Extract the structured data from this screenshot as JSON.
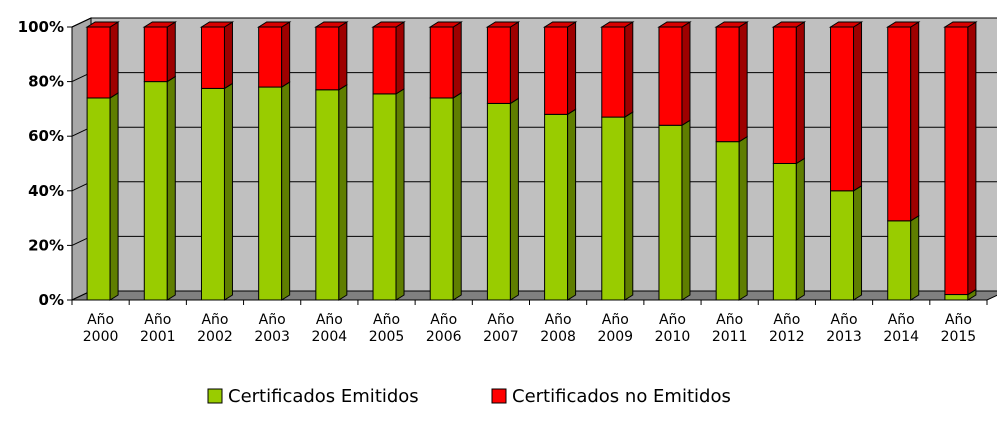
{
  "chart_data": {
    "type": "bar",
    "stacked": true,
    "percent": true,
    "three_d": true,
    "categories": [
      [
        "Año",
        "2000"
      ],
      [
        "Año",
        "2001"
      ],
      [
        "Año",
        "2002"
      ],
      [
        "Año",
        "2003"
      ],
      [
        "Año",
        "2004"
      ],
      [
        "Año",
        "2005"
      ],
      [
        "Año",
        "2006"
      ],
      [
        "Año",
        "2007"
      ],
      [
        "Año",
        "2008"
      ],
      [
        "Año",
        "2009"
      ],
      [
        "Año",
        "2010"
      ],
      [
        "Año",
        "2011"
      ],
      [
        "Año",
        "2012"
      ],
      [
        "Año",
        "2013"
      ],
      [
        "Año",
        "2014"
      ],
      [
        "Año",
        "2015"
      ]
    ],
    "series": [
      {
        "name": "Certificados Emitidos",
        "color": "#99cc00",
        "values": [
          74,
          80,
          77.5,
          78,
          77,
          75.5,
          74,
          72,
          68,
          67,
          64,
          58,
          50,
          40,
          29,
          2
        ]
      },
      {
        "name": "Certificados no Emitidos",
        "color": "#ff0000",
        "values": [
          26,
          20,
          22.5,
          22,
          23,
          24.5,
          26,
          28,
          32,
          33,
          36,
          42,
          50,
          60,
          71,
          98
        ]
      }
    ],
    "yticks": [
      "0%",
      "20%",
      "40%",
      "60%",
      "80%",
      "100%"
    ],
    "ylim": [
      0,
      100
    ],
    "grid": true,
    "legend_position": "bottom",
    "title": "",
    "xlabel": "",
    "ylabel": ""
  }
}
